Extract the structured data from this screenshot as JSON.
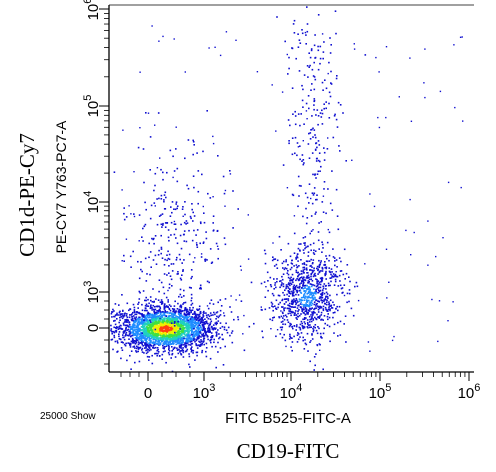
{
  "chart_data": {
    "type": "scatter",
    "style": "flow-cytometry-density-dot-plot",
    "outer_xlabel": "CD19-FITC",
    "outer_ylabel": "CD1d-PE-Cy7",
    "xlabel": "FITC B525-FITC-A",
    "ylabel": "PE-CY7 Y763-PC7-A",
    "event_note": "25000 Show",
    "x_ticks": [
      {
        "label": "0"
      },
      {
        "label": "10",
        "exp": "3"
      },
      {
        "label": "10",
        "exp": "4"
      },
      {
        "label": "10",
        "exp": "5"
      },
      {
        "label": "10",
        "exp": "6"
      }
    ],
    "y_ticks": [
      {
        "label": "0"
      },
      {
        "label": "10",
        "exp": "3"
      },
      {
        "label": "10",
        "exp": "4"
      },
      {
        "label": "10",
        "exp": "5"
      },
      {
        "label": "10",
        "exp": "6"
      }
    ],
    "x_scale": "biexponential",
    "y_scale": "biexponential",
    "density_colors": [
      "#1010d0",
      "#1e8cff",
      "#20d0c0",
      "#40e040",
      "#f0f000",
      "#ff4010"
    ],
    "populations": [
      {
        "name": "CD19- CD1d-",
        "x_center": 300,
        "y_center": 0,
        "relative_size": "large",
        "peak_density": "high"
      },
      {
        "name": "CD19+ CD1d dim",
        "x_center": 15000,
        "y_center": 900,
        "relative_size": "medium",
        "peak_density": "low"
      },
      {
        "name": "CD19- streak",
        "x_center": 500,
        "y_center": 3000,
        "relative_size": "sparse",
        "peak_density": "low"
      },
      {
        "name": "CD19+ streak",
        "x_center": 18000,
        "y_center": 50000,
        "relative_size": "sparse",
        "peak_density": "low"
      }
    ]
  }
}
